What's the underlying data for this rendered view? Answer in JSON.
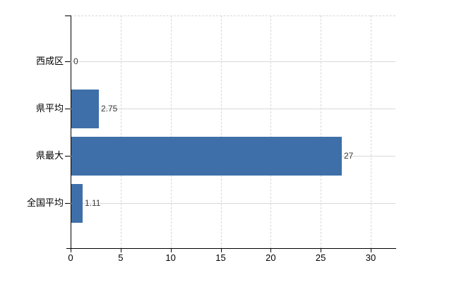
{
  "chart_data": {
    "type": "bar",
    "orientation": "horizontal",
    "title": "",
    "xlabel": "",
    "ylabel": "",
    "categories": [
      "西成区",
      "県平均",
      "県最大",
      "全国平均"
    ],
    "values": [
      0,
      2.75,
      27,
      1.11
    ],
    "value_labels": [
      "0",
      "2.75",
      "27",
      "1.11"
    ],
    "x_tick_labels": [
      "0",
      "5",
      "10",
      "15",
      "20",
      "25",
      "30"
    ],
    "x_tick_values": [
      0,
      5,
      10,
      15,
      20,
      25,
      30
    ],
    "xlim": [
      0,
      32.5
    ],
    "grid": {
      "vertical": "dashed",
      "horizontal": "solid-per-category-row",
      "top_border": "dashed"
    },
    "legend": null,
    "colors": {
      "bar": "#3e6fa9",
      "grid": "#d9d9d9",
      "axis": "#000000",
      "value_label": "#3a3a3a",
      "tick_label": "#000000",
      "background": "#ffffff"
    }
  }
}
